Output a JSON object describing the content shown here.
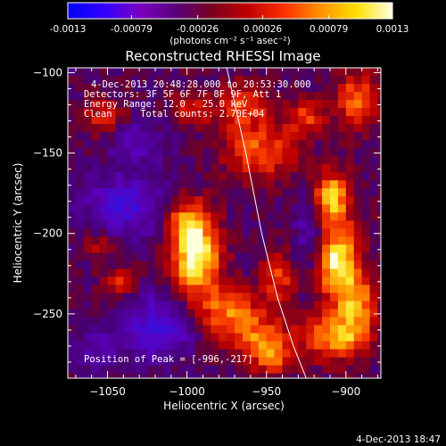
{
  "chart_data": {
    "type": "heatmap",
    "title": "Reconstructed RHESSI Image",
    "xlabel": "Heliocentric X (arcsec)",
    "ylabel": "Heliocentric Y (arcsec)",
    "xlim": [
      -1075,
      -878
    ],
    "ylim": [
      -290,
      -97
    ],
    "xticks": [
      -1050,
      -1000,
      -950,
      -900
    ],
    "yticks": [
      -100,
      -150,
      -200,
      -250
    ],
    "colorbar": {
      "min": -0.0013,
      "max": 0.0013,
      "ticks": [
        "-0.0013",
        "-0.00079",
        "-0.00026",
        "0.00026",
        "0.00079",
        "0.0013"
      ],
      "units": "(photons cm⁻² s⁻¹ asec⁻²)",
      "colors": [
        "#0000ff",
        "#3300ff",
        "#7a00c0",
        "#5a007a",
        "#7a0020",
        "#c00000",
        "#ff3000",
        "#ff9000",
        "#ffe000",
        "#ffffe0"
      ]
    },
    "annotations": {
      "time": "4-Dec-2013 20:48:28.000 to 20:53:30.000",
      "detectors": "Detectors: 3F 5F 6F 7F 8F 9F, Att 1",
      "energy": "Energy Range: 12.0 - 25.0 keV",
      "clean": "Clean     Total counts: 2.70E+04",
      "peak": "Position of Peak = [-996,-217]"
    },
    "peak": [
      -996,
      -217
    ],
    "blobs": [
      {
        "x": -997,
        "y": -212,
        "sx": 11,
        "sy": 16,
        "a": 1.0
      },
      {
        "x": -1003,
        "y": -188,
        "sx": 10,
        "sy": 10,
        "a": 0.55
      },
      {
        "x": -978,
        "y": -245,
        "sx": 15,
        "sy": 10,
        "a": 0.55
      },
      {
        "x": -960,
        "y": -262,
        "sx": 15,
        "sy": 10,
        "a": 0.5
      },
      {
        "x": -948,
        "y": -275,
        "sx": 10,
        "sy": 9,
        "a": 0.45
      },
      {
        "x": -908,
        "y": -215,
        "sx": 10,
        "sy": 16,
        "a": 0.9
      },
      {
        "x": -912,
        "y": -175,
        "sx": 9,
        "sy": 12,
        "a": 0.8
      },
      {
        "x": -908,
        "y": -262,
        "sx": 14,
        "sy": 10,
        "a": 0.75
      },
      {
        "x": -895,
        "y": -240,
        "sx": 9,
        "sy": 12,
        "a": 0.6
      },
      {
        "x": -945,
        "y": -225,
        "sx": 8,
        "sy": 12,
        "a": 0.45
      },
      {
        "x": -957,
        "y": -147,
        "sx": 16,
        "sy": 12,
        "a": 0.55
      },
      {
        "x": -968,
        "y": -118,
        "sx": 12,
        "sy": 10,
        "a": 0.5
      },
      {
        "x": -928,
        "y": -125,
        "sx": 9,
        "sy": 8,
        "a": 0.45
      },
      {
        "x": -895,
        "y": -115,
        "sx": 10,
        "sy": 12,
        "a": 0.6
      },
      {
        "x": -1055,
        "y": -125,
        "sx": 10,
        "sy": 8,
        "a": 0.4
      },
      {
        "x": -1000,
        "y": -120,
        "sx": 9,
        "sy": 8,
        "a": 0.35
      },
      {
        "x": -1045,
        "y": -228,
        "sx": 8,
        "sy": 6,
        "a": 0.4
      },
      {
        "x": -1058,
        "y": -205,
        "sx": 7,
        "sy": 7,
        "a": 0.3
      },
      {
        "x": -1040,
        "y": -180,
        "sx": 20,
        "sy": 14,
        "a": -0.45
      },
      {
        "x": -1020,
        "y": -255,
        "sx": 16,
        "sy": 14,
        "a": -0.5
      },
      {
        "x": -1035,
        "y": -140,
        "sx": 12,
        "sy": 10,
        "a": -0.3
      },
      {
        "x": -925,
        "y": -195,
        "sx": 7,
        "sy": 20,
        "a": -0.35
      },
      {
        "x": -1060,
        "y": -270,
        "sx": 10,
        "sy": 10,
        "a": -0.25
      }
    ],
    "limb_curve": [
      [
        -975,
        -97
      ],
      [
        -963,
        -150
      ],
      [
        -953,
        -200
      ],
      [
        -943,
        -240
      ],
      [
        -933,
        -270
      ],
      [
        -925,
        -290
      ]
    ]
  },
  "footer": {
    "timestamp": "4-Dec-2013 18:47"
  }
}
